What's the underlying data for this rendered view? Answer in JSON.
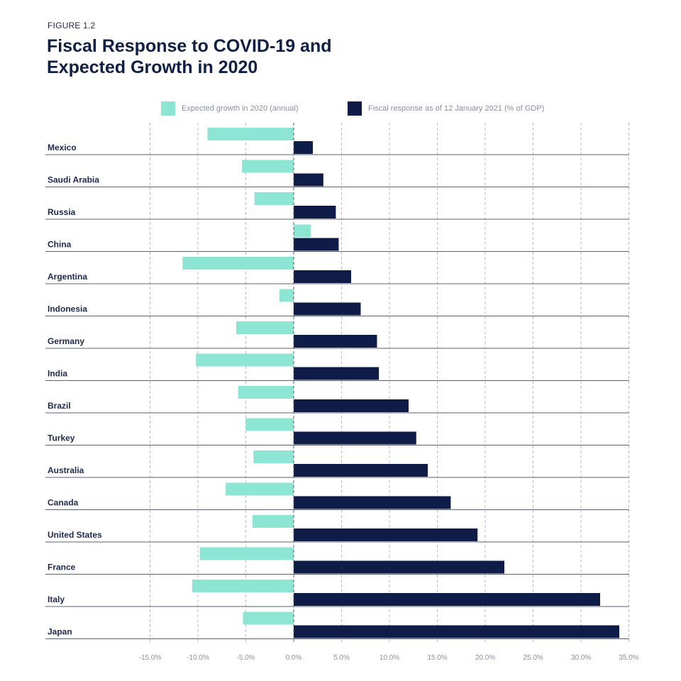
{
  "figure_label": "FIGURE 1.2",
  "title_line1": "Fiscal Response to COVID-19 and",
  "title_line2": "Expected Growth in 2020",
  "colors": {
    "growth": "#8de5d4",
    "fiscal": "#0e1c47",
    "grid": "#b9bcc4",
    "separator": "#5b6170"
  },
  "chart_data": {
    "type": "bar",
    "orientation": "horizontal",
    "title": "Fiscal Response to COVID-19 and Expected Growth in 2020",
    "categories": [
      "Mexico",
      "Saudi Arabia",
      "Russia",
      "China",
      "Argentina",
      "Indonesia",
      "Germany",
      "India",
      "Brazil",
      "Turkey",
      "Australia",
      "Canada",
      "United States",
      "France",
      "Italy",
      "Japan"
    ],
    "series": [
      {
        "name": "Expected growth in 2020 (annual)",
        "values": [
          -9.0,
          -5.4,
          -4.1,
          1.8,
          -11.6,
          -1.5,
          -6.0,
          -10.2,
          -5.8,
          -5.0,
          -4.2,
          -7.1,
          -4.3,
          -9.8,
          -10.6,
          -5.3
        ]
      },
      {
        "name": "Fiscal response as of 12 January 2021 (% of GDP)",
        "values": [
          2.0,
          3.1,
          4.4,
          4.7,
          6.0,
          7.0,
          8.7,
          8.9,
          12.0,
          12.8,
          14.0,
          16.4,
          19.2,
          22.0,
          32.0,
          34.0
        ]
      }
    ],
    "x_ticks": [
      -15,
      -10,
      -5,
      0,
      5,
      10,
      15,
      20,
      25,
      30,
      35
    ],
    "x_tick_labels": [
      "-15.0%",
      "-10.0%",
      "-5.0%",
      "0.0%",
      "5.0%",
      "10.0%",
      "15.0%",
      "20.0%",
      "25.0%",
      "30.0%",
      "35.0%"
    ],
    "xlim": [
      -15,
      35
    ],
    "grid": true,
    "legend_position": "top-center",
    "xlabel": "",
    "ylabel": ""
  }
}
